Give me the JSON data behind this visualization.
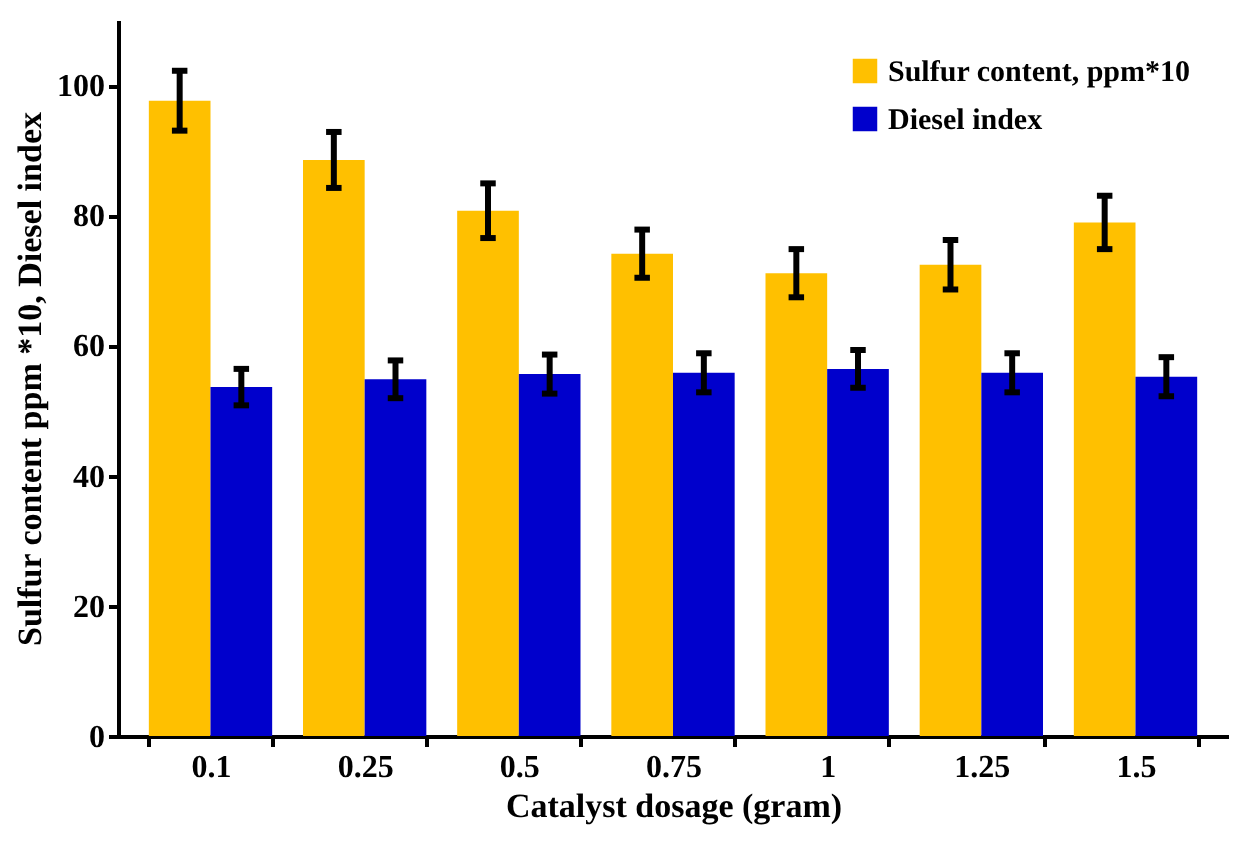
{
  "chart_data": {
    "type": "bar",
    "xlabel": "Catalyst dosage (gram)",
    "ylabel": "Sulfur content ppm *10, Diesel index",
    "categories": [
      "0.1",
      "0.25",
      "0.5",
      "0.75",
      "1",
      "1.25",
      "1.5"
    ],
    "series": [
      {
        "name": "Sulfur content, ppm*10",
        "color": "#ffc000",
        "values": [
          97.6,
          88.5,
          80.7,
          74.1,
          71.1,
          72.4,
          78.9
        ],
        "errors": [
          4.6,
          4.3,
          4.2,
          3.7,
          3.7,
          3.8,
          4.1
        ]
      },
      {
        "name": "Diesel index",
        "color": "#0000cc",
        "values": [
          53.6,
          54.8,
          55.6,
          55.8,
          56.4,
          55.8,
          55.2
        ],
        "errors": [
          2.8,
          2.9,
          3,
          3,
          2.9,
          3,
          3
        ]
      }
    ],
    "ylim": [
      0,
      110
    ],
    "yticks": [
      0,
      20,
      40,
      60,
      80,
      100
    ],
    "grid": false,
    "legend": "top right"
  }
}
